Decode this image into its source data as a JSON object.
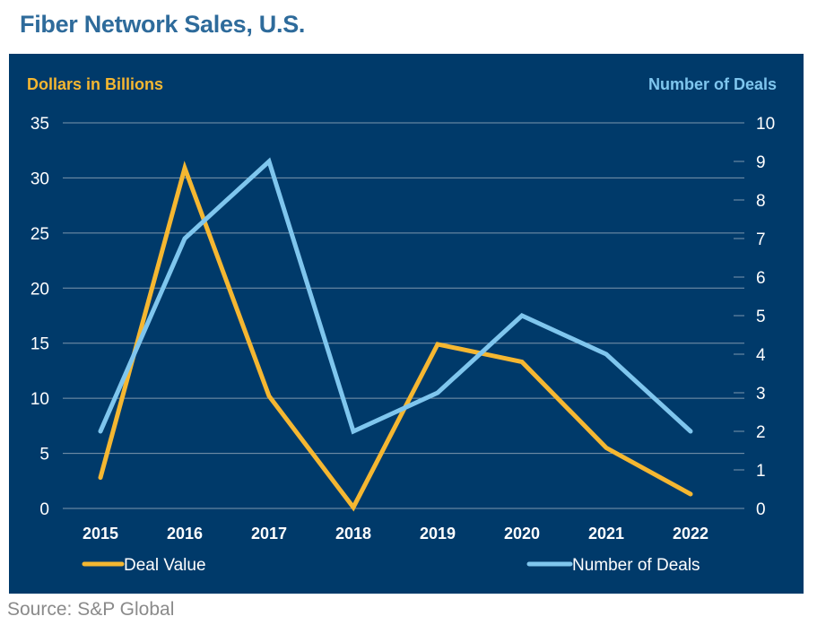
{
  "title": "Fiber Network Sales, U.S.",
  "source": "Source: S&P Global",
  "colors": {
    "background": "#003a6a",
    "title": "#2e6b9b",
    "deal_value": "#f5b731",
    "number_of_deals": "#7fc6ee",
    "gridline": "#7d96ad",
    "axis_text": "#ffffff"
  },
  "chart_data": {
    "type": "line",
    "x": [
      "2015",
      "2016",
      "2017",
      "2018",
      "2019",
      "2020",
      "2021",
      "2022"
    ],
    "y_left": {
      "label": "Dollars in Billions",
      "range": [
        0,
        35
      ],
      "ticks": [
        "0",
        "5",
        "10",
        "15",
        "20",
        "25",
        "30",
        "35"
      ]
    },
    "y_right": {
      "label": "Number of Deals",
      "range": [
        0,
        10
      ],
      "ticks": [
        "0",
        "1",
        "2",
        "3",
        "4",
        "5",
        "6",
        "7",
        "8",
        "9",
        "10"
      ]
    },
    "series": [
      {
        "name": "Deal Value",
        "axis": "left",
        "color": "#f5b731",
        "values": [
          2.8,
          30.9,
          10.2,
          0.1,
          14.9,
          13.3,
          5.5,
          1.3
        ]
      },
      {
        "name": "Number of Deals",
        "axis": "right",
        "color": "#7fc6ee",
        "values": [
          2,
          7,
          9,
          2,
          3,
          5,
          4,
          2
        ]
      }
    ],
    "grid": true,
    "legend": "bottom"
  }
}
